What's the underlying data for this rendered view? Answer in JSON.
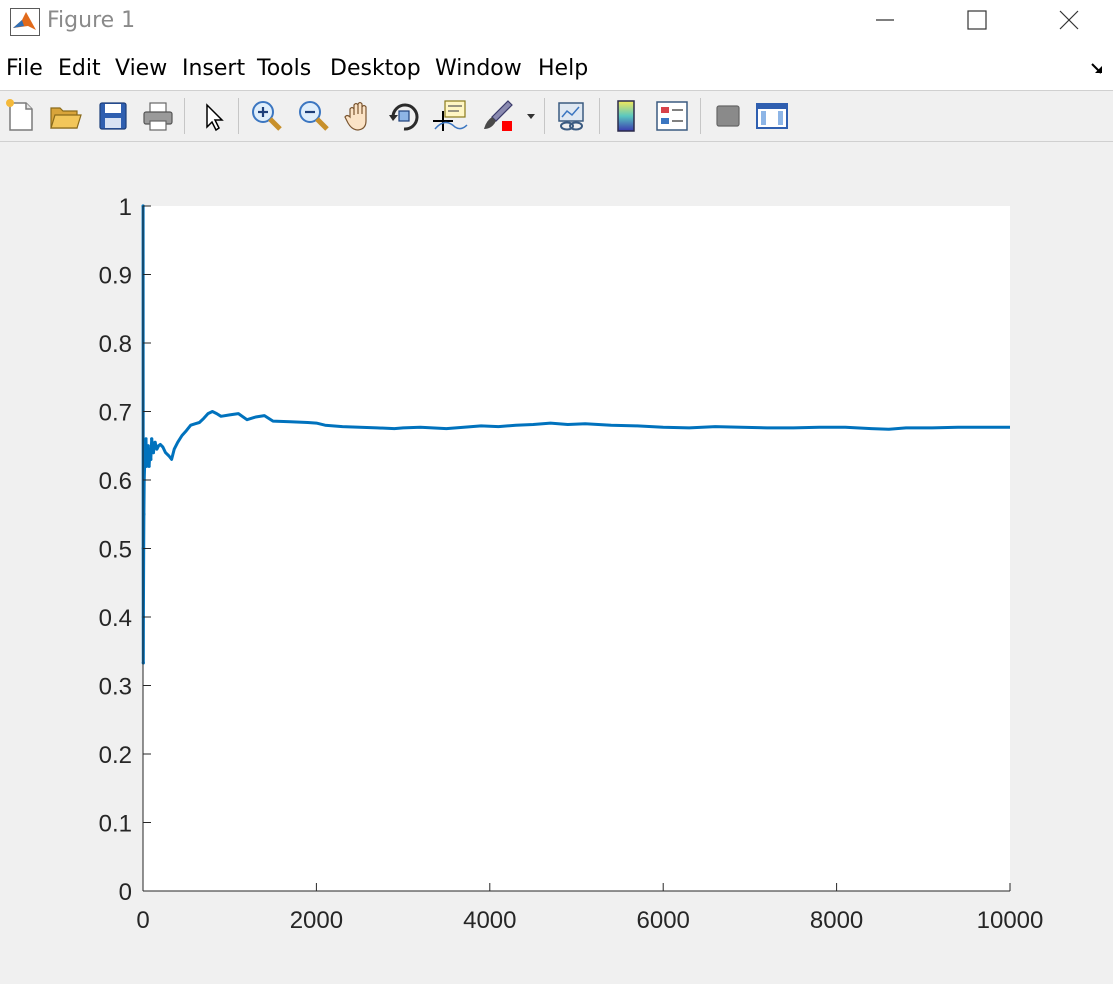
{
  "window": {
    "title": "Figure 1"
  },
  "menu": [
    "File",
    "Edit",
    "View",
    "Insert",
    "Tools",
    "Desktop",
    "Window",
    "Help"
  ],
  "toolbar": {
    "icons": [
      "new-figure-icon",
      "open-file-icon",
      "save-icon",
      "print-icon",
      "edit-plot-arrow-icon",
      "zoom-in-icon",
      "zoom-out-icon",
      "pan-hand-icon",
      "rotate-3d-icon",
      "data-cursor-icon",
      "brush-icon",
      "brush-dropdown-icon",
      "link-plot-icon",
      "colorbar-icon",
      "legend-icon",
      "hide-plot-tools-icon",
      "show-plot-tools-icon"
    ]
  },
  "colors": {
    "line": "#0072BD",
    "axes_bg": "#ffffff",
    "figure_bg": "#f0f0f0",
    "brush_red": "#ff0000"
  },
  "chart_data": {
    "type": "line",
    "title": "",
    "xlabel": "",
    "ylabel": "",
    "xlim": [
      0,
      10000
    ],
    "ylim": [
      0,
      1
    ],
    "xticks": [
      0,
      2000,
      4000,
      6000,
      8000,
      10000
    ],
    "xtick_labels": [
      "0",
      "2000",
      "4000",
      "6000",
      "8000",
      "10000"
    ],
    "yticks": [
      0,
      0.1,
      0.2,
      0.3,
      0.4,
      0.5,
      0.6,
      0.7,
      0.8,
      0.9,
      1
    ],
    "ytick_labels": [
      "0",
      "0.1",
      "0.2",
      "0.3",
      "0.4",
      "0.5",
      "0.6",
      "0.7",
      "0.8",
      "0.9",
      "1"
    ],
    "grid": false,
    "series": [
      {
        "x": [
          1,
          2,
          3,
          5,
          8,
          10,
          14,
          18,
          22,
          26,
          30,
          35,
          40,
          50,
          60,
          70,
          80,
          90,
          100,
          120,
          140,
          160,
          180,
          200,
          230,
          260,
          300,
          330,
          360,
          400,
          450,
          500,
          550,
          600,
          650,
          700,
          750,
          800,
          850,
          900,
          1000,
          1100,
          1200,
          1300,
          1400,
          1500,
          1700,
          1900,
          2000,
          2100,
          2300,
          2500,
          2700,
          2900,
          3000,
          3200,
          3500,
          3700,
          3900,
          4100,
          4300,
          4500,
          4700,
          4900,
          5100,
          5400,
          5700,
          6000,
          6300,
          6600,
          6900,
          7200,
          7500,
          7800,
          8100,
          8400,
          8600,
          8800,
          9100,
          9400,
          9700,
          10000
        ],
        "y": [
          1.0,
          0.5,
          0.333,
          0.4,
          0.5,
          0.55,
          0.6,
          0.62,
          0.64,
          0.65,
          0.64,
          0.66,
          0.62,
          0.63,
          0.65,
          0.62,
          0.64,
          0.63,
          0.66,
          0.64,
          0.655,
          0.645,
          0.65,
          0.652,
          0.648,
          0.64,
          0.635,
          0.63,
          0.645,
          0.655,
          0.665,
          0.672,
          0.68,
          0.682,
          0.684,
          0.69,
          0.697,
          0.7,
          0.697,
          0.693,
          0.695,
          0.697,
          0.688,
          0.692,
          0.694,
          0.686,
          0.685,
          0.684,
          0.683,
          0.68,
          0.678,
          0.677,
          0.676,
          0.675,
          0.676,
          0.677,
          0.675,
          0.677,
          0.679,
          0.678,
          0.68,
          0.681,
          0.683,
          0.681,
          0.682,
          0.68,
          0.679,
          0.677,
          0.676,
          0.678,
          0.677,
          0.676,
          0.676,
          0.677,
          0.677,
          0.675,
          0.674,
          0.676,
          0.676,
          0.677,
          0.677,
          0.677
        ]
      }
    ]
  }
}
